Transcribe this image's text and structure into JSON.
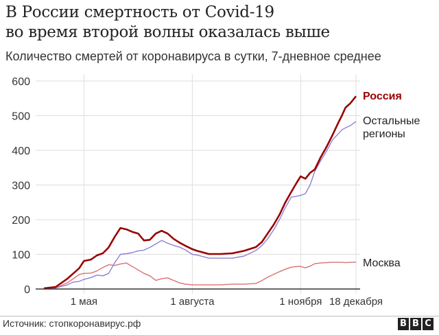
{
  "header": {
    "title_line1": "В России смертность от Covid-19",
    "title_line2": "во время второй волны оказалась выше",
    "subtitle": "Количество смертей от коронавируса в сутки, 7-дневное среднее"
  },
  "footer": {
    "source": "Источник: стопкоронавирус.рф",
    "logo": [
      "B",
      "B",
      "C"
    ]
  },
  "colors": {
    "russia": "#990000",
    "regions": "#8e7fd1",
    "moscow": "#d97070",
    "grid": "#dddddd",
    "axis": "#333333"
  },
  "chart_data": {
    "type": "line",
    "title": "В России смертность от Covid-19 во время второй волны оказалась выше",
    "subtitle": "Количество смертей от коронавируса в сутки, 7-дневное среднее",
    "xlabel": "",
    "ylabel": "",
    "ylim": [
      0,
      600
    ],
    "yticks": [
      0,
      100,
      200,
      300,
      400,
      500,
      600
    ],
    "xticks": [
      {
        "day": 34,
        "label": "1 мая"
      },
      {
        "day": 126,
        "label": "1 августа"
      },
      {
        "day": 218,
        "label": "1 ноября"
      },
      {
        "day": 265,
        "label": "18 декабря"
      }
    ],
    "x_unit": "days since 28 March 2020",
    "x": [
      0,
      10,
      20,
      25,
      30,
      34,
      40,
      45,
      50,
      55,
      60,
      65,
      70,
      75,
      80,
      85,
      90,
      95,
      100,
      105,
      110,
      115,
      120,
      126,
      130,
      140,
      150,
      160,
      170,
      180,
      185,
      190,
      195,
      200,
      205,
      210,
      215,
      218,
      222,
      226,
      230,
      235,
      240,
      245,
      250,
      253,
      256,
      260,
      265
    ],
    "grid": true,
    "legend_position": "inline-right",
    "series": [
      {
        "name": "Россия",
        "key": "russia",
        "values": [
          2,
          6,
          30,
          45,
          60,
          81,
          85,
          97,
          103,
          120,
          150,
          176,
          172,
          165,
          160,
          140,
          142,
          160,
          168,
          160,
          145,
          134,
          125,
          115,
          110,
          101,
          101,
          103,
          110,
          121,
          135,
          160,
          185,
          214,
          250,
          280,
          309,
          325,
          318,
          335,
          345,
          380,
          410,
          444,
          480,
          500,
          523,
          535,
          556
        ]
      },
      {
        "name": "Остальные регионы",
        "key": "regions",
        "values": [
          1,
          3,
          12,
          20,
          22,
          28,
          33,
          40,
          38,
          45,
          75,
          100,
          102,
          105,
          110,
          112,
          120,
          130,
          140,
          132,
          126,
          121,
          113,
          100,
          98,
          89,
          89,
          89,
          95,
          111,
          125,
          145,
          170,
          200,
          235,
          265,
          268,
          270,
          275,
          300,
          339,
          370,
          398,
          430,
          448,
          459,
          465,
          471,
          483
        ]
      },
      {
        "name": "Москва",
        "key": "moscow",
        "values": [
          1,
          3,
          18,
          30,
          42,
          45,
          46,
          52,
          62,
          70,
          68,
          72,
          75,
          65,
          55,
          45,
          38,
          25,
          30,
          32,
          25,
          18,
          14,
          12,
          12,
          12,
          12,
          14,
          14,
          16,
          24,
          34,
          42,
          50,
          57,
          63,
          65,
          65,
          61,
          66,
          73,
          75,
          76,
          77,
          77,
          77,
          76,
          77,
          77
        ]
      }
    ],
    "labels": {
      "russia": "Россия",
      "regions_line1": "Остальные",
      "regions_line2": "регионы",
      "moscow": "Москва"
    }
  }
}
